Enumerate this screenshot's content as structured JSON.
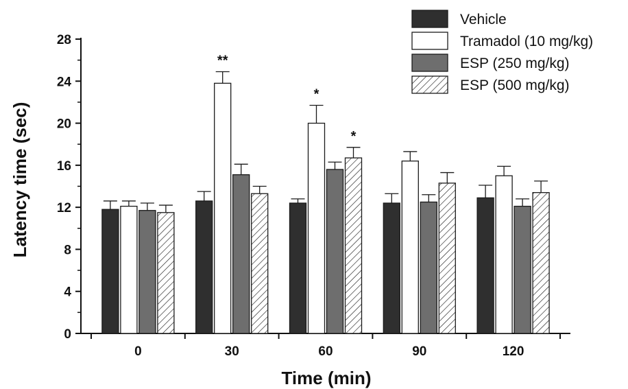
{
  "chart_data": {
    "type": "bar",
    "xlabel": "Time (min)",
    "ylabel": "Latency time (sec)",
    "ylim": [
      0,
      28
    ],
    "yticks": [
      "0",
      "4",
      "8",
      "12",
      "16",
      "20",
      "24",
      "28"
    ],
    "categories": [
      "0",
      "30",
      "60",
      "90",
      "120"
    ],
    "legend_position": "top-right",
    "series": [
      {
        "name": "Vehicle",
        "style": "solid-dark",
        "color": "#2f2f2f",
        "values": [
          11.8,
          12.6,
          12.4,
          12.4,
          12.9
        ],
        "errors": [
          0.8,
          0.9,
          0.4,
          0.9,
          1.2
        ],
        "significance": [
          "",
          "",
          "",
          "",
          ""
        ]
      },
      {
        "name": "Tramadol (10 mg/kg)",
        "style": "open",
        "color": "#ffffff",
        "values": [
          12.1,
          23.8,
          20.0,
          16.4,
          15.0
        ],
        "errors": [
          0.5,
          1.1,
          1.7,
          0.9,
          0.9
        ],
        "significance": [
          "",
          "**",
          "*",
          "",
          ""
        ]
      },
      {
        "name": "ESP (250 mg/kg)",
        "style": "solid-gray",
        "color": "#6e6e6e",
        "values": [
          11.7,
          15.1,
          15.6,
          12.5,
          12.1
        ],
        "errors": [
          0.7,
          1.0,
          0.7,
          0.7,
          0.7
        ],
        "significance": [
          "",
          "",
          "",
          "",
          ""
        ]
      },
      {
        "name": "ESP (500 mg/kg)",
        "style": "hatched",
        "color": "#ffffff",
        "values": [
          11.5,
          13.3,
          16.7,
          14.3,
          13.4
        ],
        "errors": [
          0.7,
          0.7,
          1.0,
          1.0,
          1.1
        ],
        "significance": [
          "",
          "",
          "*",
          "",
          ""
        ]
      }
    ]
  }
}
